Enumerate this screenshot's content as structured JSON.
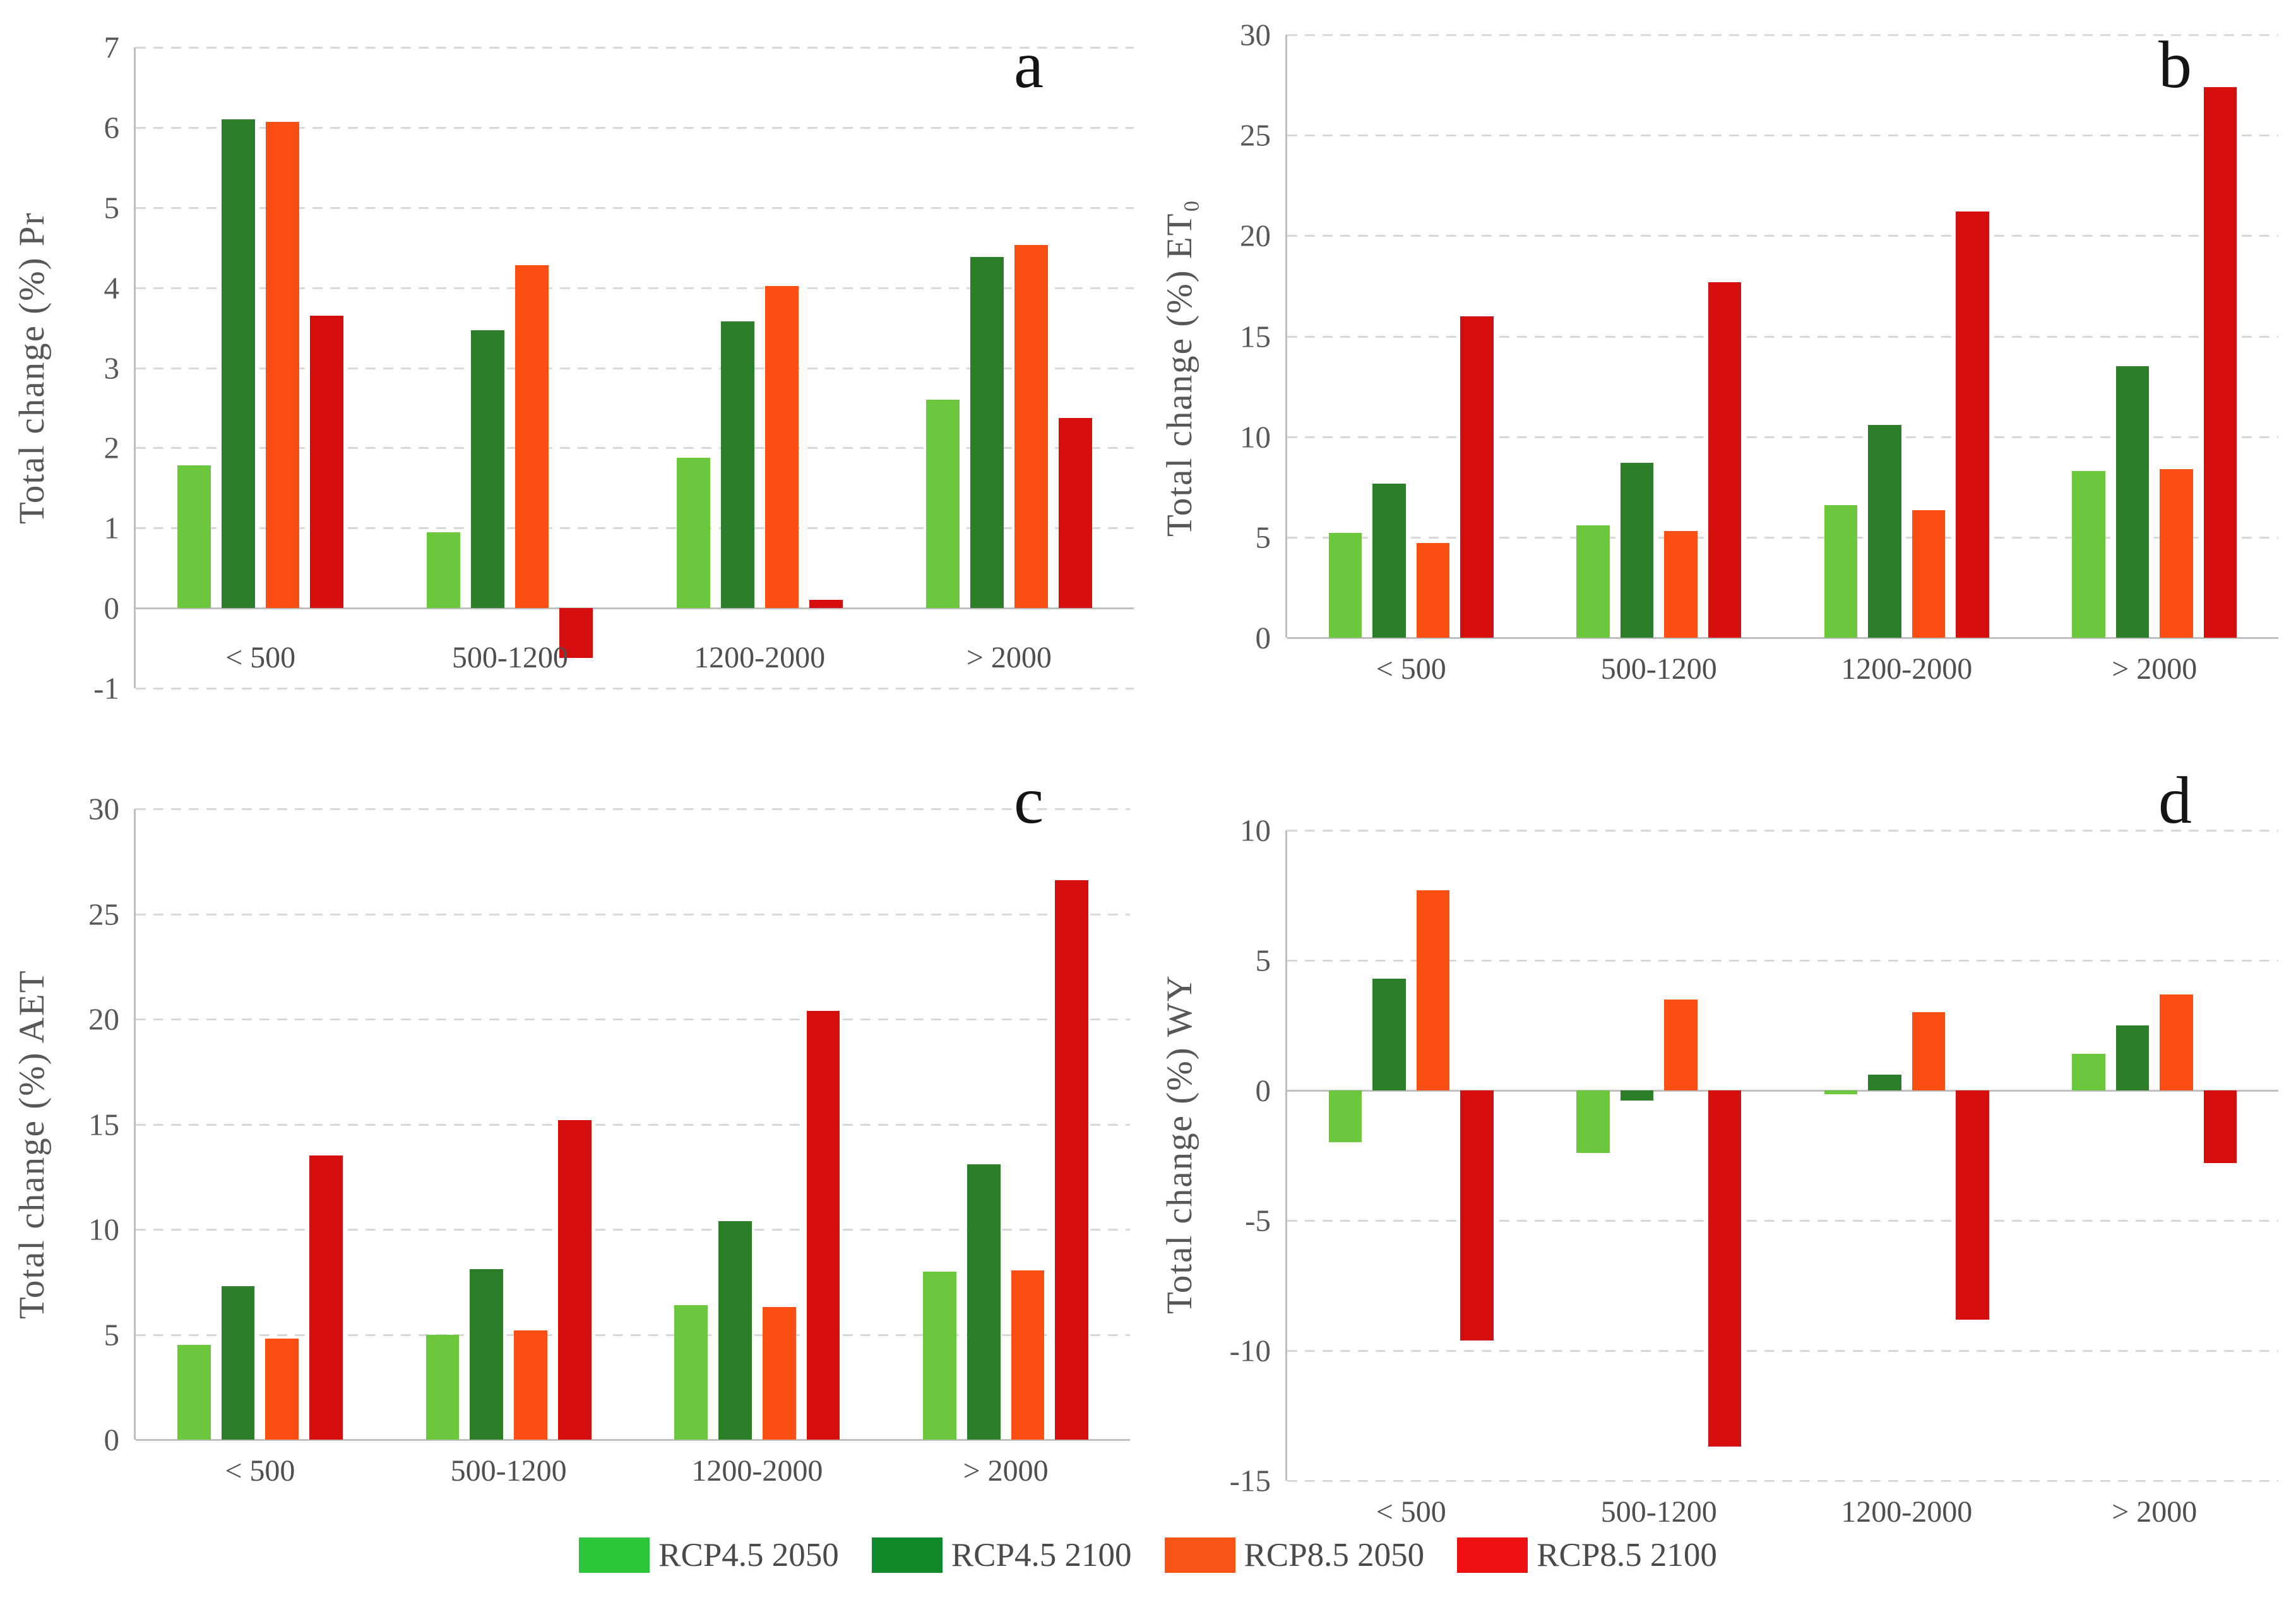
{
  "figure": {
    "background": "#ffffff",
    "axis_color": "#bfbfbf",
    "gridline_color": "#d9d9d9",
    "text_color": "#575757"
  },
  "legend": {
    "position": "bottom-center",
    "items": [
      {
        "label": "RCP4.5 2050",
        "color": "#2cc63a"
      },
      {
        "label": "RCP4.5 2100",
        "color": "#108a2b"
      },
      {
        "label": "RCP8.5 2050",
        "color": "#f95413"
      },
      {
        "label": "RCP8.5 2100",
        "color": "#ee1111"
      }
    ]
  },
  "chart_data": {
    "type": "bar",
    "grid": "dashed-horizontal",
    "categories": [
      "< 500",
      "500-1200",
      "1200-2000",
      "> 2000"
    ],
    "series_names": [
      "RCP4.5 2050",
      "RCP4.5 2100",
      "RCP8.5 2050",
      "RCP8.5 2100"
    ],
    "series_colors": [
      "#6bc83c",
      "#2e7d2b",
      "#fa4e12",
      "#d50f0f"
    ],
    "panels": [
      {
        "id": "a",
        "letter": "a",
        "ylabel": "Total change (%) Pr",
        "ymin": -1,
        "ymax": 7,
        "ystep": 1,
        "xlabels_pos": "inside-bottom",
        "series": [
          {
            "name": "RCP4.5 2050",
            "values": [
              1.78,
              0.95,
              1.88,
              2.6
            ]
          },
          {
            "name": "RCP4.5 2100",
            "values": [
              6.1,
              3.47,
              3.58,
              4.38
            ]
          },
          {
            "name": "RCP8.5 2050",
            "values": [
              6.07,
              4.28,
              4.02,
              4.53
            ]
          },
          {
            "name": "RCP8.5 2100",
            "values": [
              3.65,
              -0.62,
              0.1,
              2.37
            ]
          }
        ]
      },
      {
        "id": "b",
        "letter": "b",
        "ylabel": "Total change (%) ET₀",
        "ymin": 0,
        "ymax": 30,
        "ystep": 5,
        "xlabels_pos": "below",
        "series": [
          {
            "name": "RCP4.5 2050",
            "values": [
              5.2,
              5.6,
              6.6,
              8.3
            ]
          },
          {
            "name": "RCP4.5 2100",
            "values": [
              7.65,
              8.7,
              10.6,
              13.5
            ]
          },
          {
            "name": "RCP8.5 2050",
            "values": [
              4.7,
              5.3,
              6.35,
              8.4
            ]
          },
          {
            "name": "RCP8.5 2100",
            "values": [
              16.0,
              17.7,
              21.2,
              27.4
            ]
          }
        ]
      },
      {
        "id": "c",
        "letter": "c",
        "ylabel": "Total change (%) AET",
        "ymin": 0,
        "ymax": 30,
        "ystep": 5,
        "xlabels_pos": "below",
        "series": [
          {
            "name": "RCP4.5 2050",
            "values": [
              4.5,
              5.0,
              6.4,
              8.0
            ]
          },
          {
            "name": "RCP4.5 2100",
            "values": [
              7.3,
              8.1,
              10.4,
              13.1
            ]
          },
          {
            "name": "RCP8.5 2050",
            "values": [
              4.8,
              5.2,
              6.3,
              8.05
            ]
          },
          {
            "name": "RCP8.5 2100",
            "values": [
              13.5,
              15.2,
              20.4,
              26.6
            ]
          }
        ]
      },
      {
        "id": "d",
        "letter": "d",
        "ylabel": "Total change (%) WY",
        "ymin": -15,
        "ymax": 10,
        "ystep": 5,
        "xlabels_pos": "below",
        "series": [
          {
            "name": "RCP4.5 2050",
            "values": [
              -2.0,
              -2.4,
              -0.15,
              1.4
            ]
          },
          {
            "name": "RCP4.5 2100",
            "values": [
              4.3,
              -0.4,
              0.6,
              2.5
            ]
          },
          {
            "name": "RCP8.5 2050",
            "values": [
              7.7,
              3.5,
              3.0,
              3.7
            ]
          },
          {
            "name": "RCP8.5 2100",
            "values": [
              -9.6,
              -13.7,
              -8.8,
              -2.8
            ]
          }
        ]
      }
    ]
  }
}
